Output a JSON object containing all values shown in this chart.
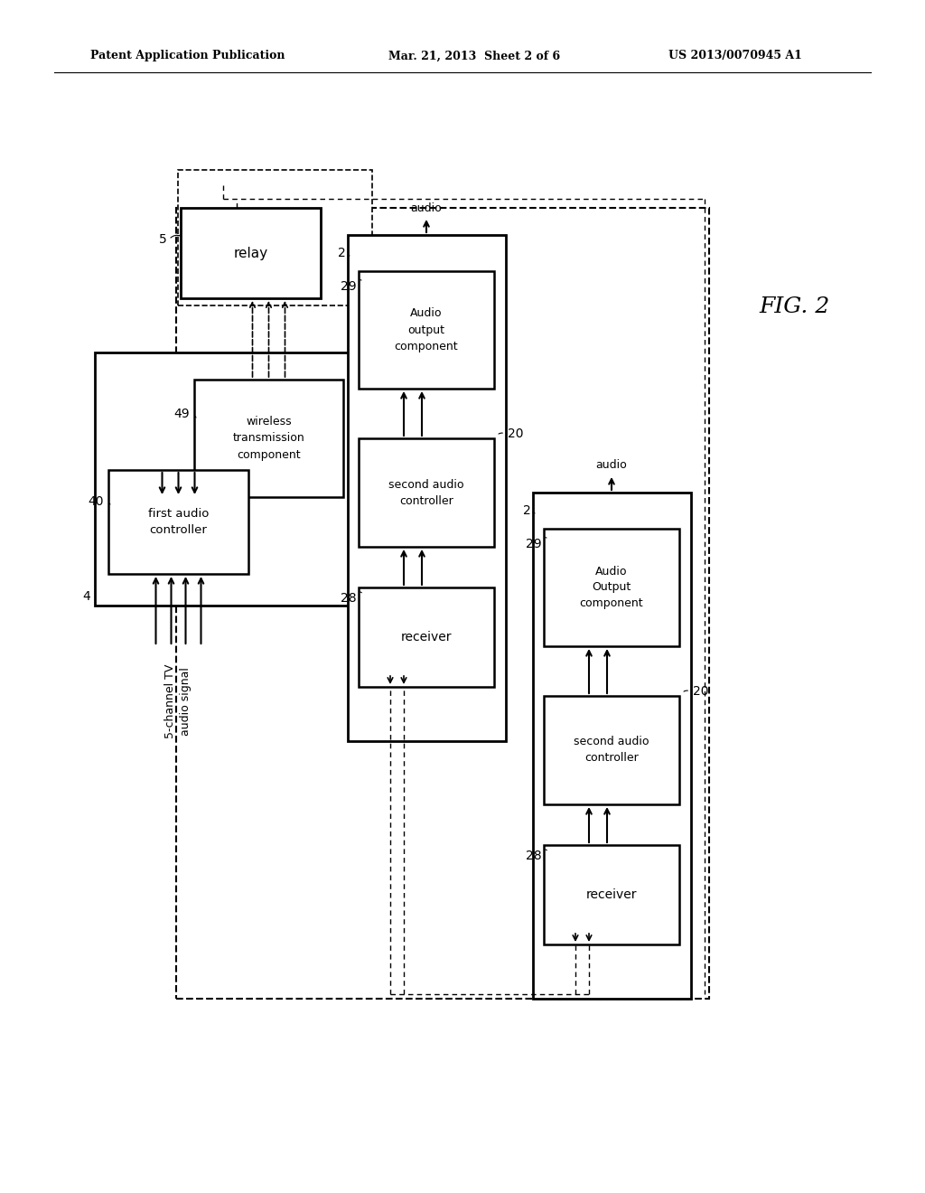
{
  "title_left": "Patent Application Publication",
  "title_center": "Mar. 21, 2013  Sheet 2 of 6",
  "title_right": "US 2013/0070945 A1",
  "fig_label": "FIG. 2",
  "bg_color": "#ffffff"
}
